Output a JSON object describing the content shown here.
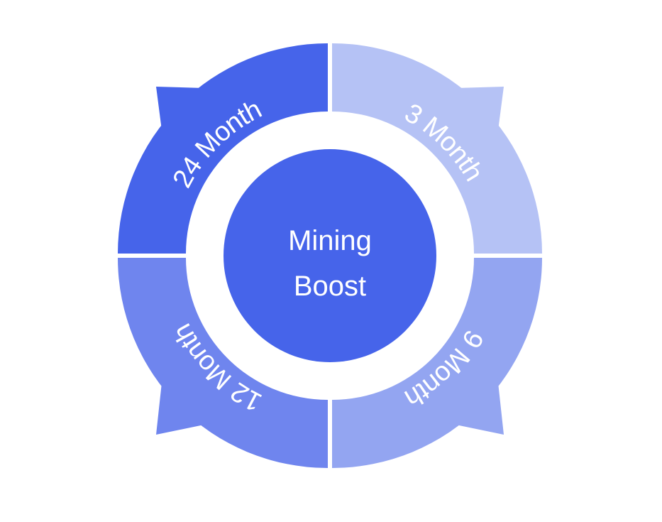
{
  "center": {
    "line1": "Mining",
    "line2": "Boost",
    "color": "#4664EA"
  },
  "segments": [
    {
      "id": "3-month",
      "label": "3 Month",
      "color": "#B5C2F5"
    },
    {
      "id": "9-month",
      "label": "9 Month",
      "color": "#93A5F1"
    },
    {
      "id": "12-month",
      "label": "12 Month",
      "color": "#6F85EE"
    },
    {
      "id": "24-month",
      "label": "24 Month",
      "color": "#4664EA"
    }
  ],
  "colors": {
    "background": "#FFFFFF",
    "text": "#FFFFFF"
  }
}
